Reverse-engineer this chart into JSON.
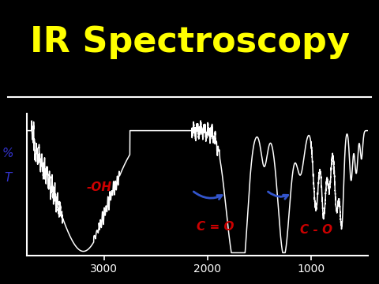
{
  "title": "IR Spectroscopy",
  "title_color": "#FFFF00",
  "title_fontsize": 32,
  "bg_color": "#000000",
  "line_color": "#FFFFFF",
  "axis_color": "#FFFFFF",
  "ylabel_color": "#3333CC",
  "xticks": [
    3000,
    2000,
    1000
  ],
  "xmin": 3750,
  "xmax": 450,
  "ylim": [
    0,
    1.0
  ],
  "oh_label": "-OH",
  "co_label": "C = O",
  "co_single_label": "C - O",
  "label_color": "#CC0000",
  "label_fontsize": 11,
  "arrow_color": "#3355CC",
  "divider_lw": 1.5
}
